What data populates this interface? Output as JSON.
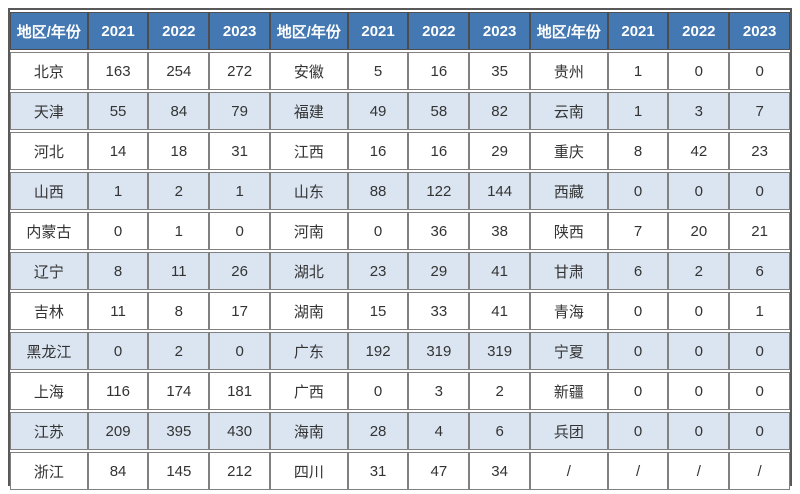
{
  "chart_data": {
    "type": "table",
    "header": [
      "地区/年份",
      "2021",
      "2022",
      "2023"
    ],
    "groups": [
      [
        [
          "北京",
          163,
          254,
          272
        ],
        [
          "天津",
          55,
          84,
          79
        ],
        [
          "河北",
          14,
          18,
          31
        ],
        [
          "山西",
          1,
          2,
          1
        ],
        [
          "内蒙古",
          0,
          1,
          0
        ],
        [
          "辽宁",
          8,
          11,
          26
        ],
        [
          "吉林",
          11,
          8,
          17
        ],
        [
          "黑龙江",
          0,
          2,
          0
        ],
        [
          "上海",
          116,
          174,
          181
        ],
        [
          "江苏",
          209,
          395,
          430
        ],
        [
          "浙江",
          84,
          145,
          212
        ]
      ],
      [
        [
          "安徽",
          5,
          16,
          35
        ],
        [
          "福建",
          49,
          58,
          82
        ],
        [
          "江西",
          16,
          16,
          29
        ],
        [
          "山东",
          88,
          122,
          144
        ],
        [
          "河南",
          0,
          36,
          38
        ],
        [
          "湖北",
          23,
          29,
          41
        ],
        [
          "湖南",
          15,
          33,
          41
        ],
        [
          "广东",
          192,
          319,
          319
        ],
        [
          "广西",
          0,
          3,
          2
        ],
        [
          "海南",
          28,
          4,
          6
        ],
        [
          "四川",
          31,
          47,
          34
        ]
      ],
      [
        [
          "贵州",
          1,
          0,
          0
        ],
        [
          "云南",
          1,
          3,
          7
        ],
        [
          "重庆",
          8,
          42,
          23
        ],
        [
          "西藏",
          0,
          0,
          0
        ],
        [
          "陕西",
          7,
          20,
          21
        ],
        [
          "甘肃",
          6,
          2,
          6
        ],
        [
          "青海",
          0,
          0,
          1
        ],
        [
          "宁夏",
          0,
          0,
          0
        ],
        [
          "新疆",
          0,
          0,
          0
        ],
        [
          "兵团",
          0,
          0,
          0
        ],
        [
          "/",
          "/",
          "/",
          "/"
        ]
      ]
    ],
    "layout": {
      "column_groups": 3,
      "rows_per_group": 11,
      "stripe_pattern": "even-rows-shaded",
      "grid": true
    }
  },
  "colors": {
    "header_bg": "#4478b2",
    "header_text": "#ffffff",
    "header_border": "#4d4d4d",
    "stripe_bg": "#dbe5f1",
    "row_bg": "#ffffff",
    "inner_border": "#808080",
    "outer_border": "#595959",
    "text": "#333333"
  }
}
